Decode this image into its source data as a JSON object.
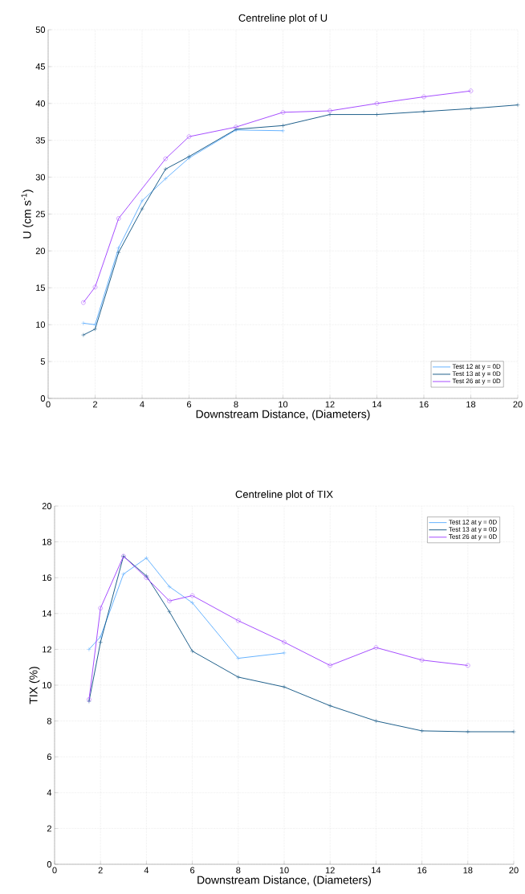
{
  "chart_data": [
    {
      "type": "line",
      "title": "Centreline plot of  U",
      "xlabel": "Downstream Distance, (Diameters)",
      "ylabel": "U  (cm s$^{-1}$)",
      "xlim": [
        0,
        20
      ],
      "ylim": [
        0,
        50
      ],
      "xticks": [
        0,
        2,
        4,
        6,
        8,
        10,
        12,
        14,
        16,
        18,
        20
      ],
      "yticks": [
        0,
        5,
        10,
        15,
        20,
        25,
        30,
        35,
        40,
        45,
        50
      ],
      "grid": true,
      "legend": "bottom right",
      "series": [
        {
          "name": "Test 12 at y = 0D",
          "color": "#66b3ff",
          "marker": "cross",
          "x": [
            1.5,
            2,
            3,
            4,
            5,
            6,
            8,
            10
          ],
          "values": [
            10.2,
            10.0,
            20.4,
            26.8,
            29.8,
            32.6,
            36.4,
            36.3
          ]
        },
        {
          "name": "Test 13 at y = 0D",
          "color": "#1f5f8b",
          "marker": "cross",
          "x": [
            1.5,
            2,
            3,
            4,
            5,
            6,
            8,
            10,
            12,
            14,
            16,
            18,
            20
          ],
          "values": [
            8.6,
            9.4,
            19.8,
            25.7,
            31.1,
            32.8,
            36.5,
            37.0,
            38.5,
            38.5,
            38.9,
            39.3,
            39.8
          ]
        },
        {
          "name": "Test 26 at y = 0D",
          "color": "#a64dff",
          "marker": "circle",
          "x": [
            1.5,
            2,
            3,
            5,
            6,
            8,
            10,
            12,
            14,
            16,
            18
          ],
          "values": [
            13.0,
            15.1,
            24.4,
            32.5,
            35.5,
            36.8,
            38.8,
            39.0,
            40.0,
            40.9,
            41.7
          ]
        }
      ]
    },
    {
      "type": "line",
      "title": "Centreline plot of  TIX",
      "xlabel": "Downstream Distance, (Diameters)",
      "ylabel": "TIX  (%)",
      "xlim": [
        0,
        20
      ],
      "ylim": [
        0,
        20
      ],
      "xticks": [
        0,
        2,
        4,
        6,
        8,
        10,
        12,
        14,
        16,
        18,
        20
      ],
      "yticks": [
        0,
        2,
        4,
        6,
        8,
        10,
        12,
        14,
        16,
        18,
        20
      ],
      "grid": true,
      "legend": "top right",
      "series": [
        {
          "name": "Test 12 at y = 0D",
          "color": "#66b3ff",
          "marker": "cross",
          "x": [
            1.5,
            2,
            3,
            4,
            5,
            6,
            8,
            10
          ],
          "values": [
            12.0,
            12.7,
            16.2,
            17.1,
            15.5,
            14.6,
            11.5,
            11.8
          ]
        },
        {
          "name": "Test 13 at y = 0D",
          "color": "#1f5f8b",
          "marker": "cross",
          "x": [
            1.5,
            2,
            3,
            4,
            5,
            6,
            8,
            10,
            12,
            14,
            16,
            18,
            20
          ],
          "values": [
            9.1,
            12.4,
            17.2,
            16.1,
            14.1,
            11.9,
            10.45,
            9.9,
            8.85,
            8.0,
            7.45,
            7.4,
            7.4
          ]
        },
        {
          "name": "Test 26 at y = 0D",
          "color": "#a64dff",
          "marker": "circle",
          "x": [
            1.5,
            2,
            3,
            4,
            5,
            6,
            8,
            10,
            12,
            14,
            16,
            18
          ],
          "values": [
            9.2,
            14.3,
            17.2,
            16.0,
            14.7,
            15.0,
            13.6,
            12.4,
            11.1,
            12.1,
            11.4,
            11.1
          ]
        }
      ]
    }
  ]
}
